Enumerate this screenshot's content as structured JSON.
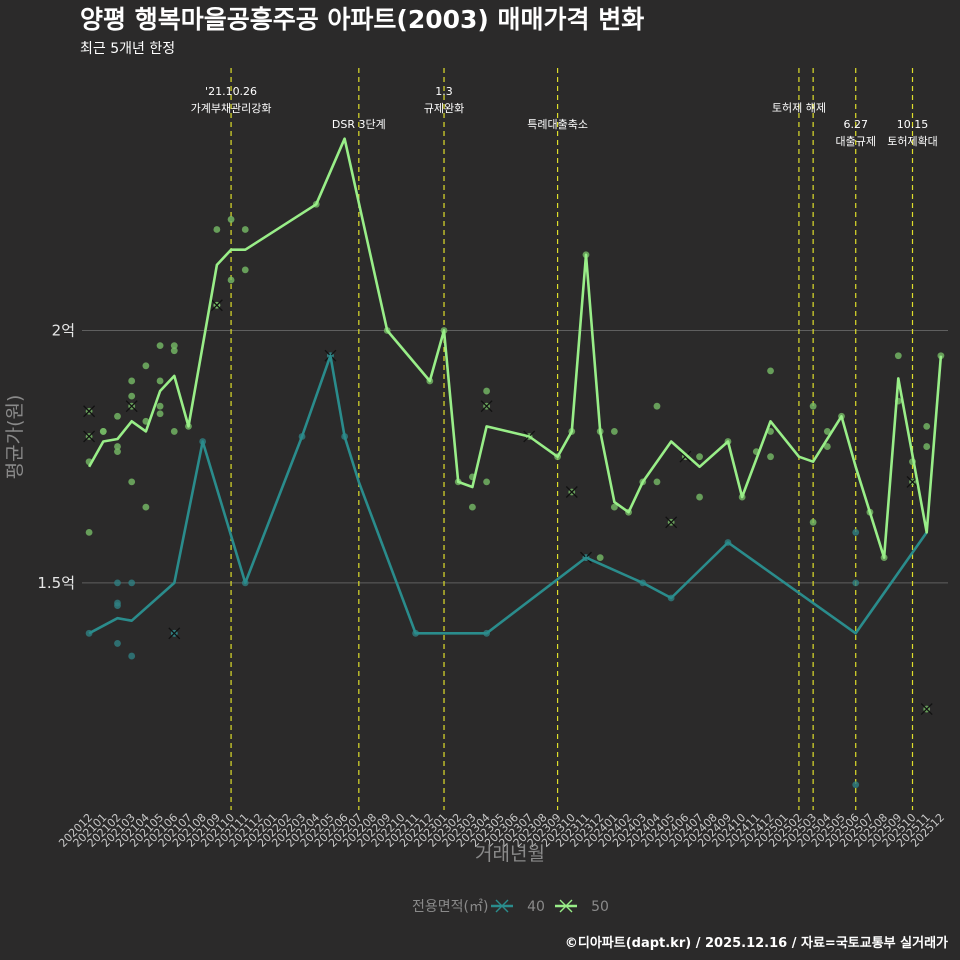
{
  "header": {
    "title": "양평 행복마을공흥주공 아파트(2003) 매매가격 변화",
    "subtitle": "최근 5개년 한정"
  },
  "caption": "©디아파트(dapt.kr) / 2025.12.16 / 자료=국토교통부 실거래가",
  "colors": {
    "background": "#2b2a2a",
    "series_40": "#2a8c8c",
    "series_50": "#99ee88",
    "point_40": "#2f7f82",
    "point_50": "#77bb66",
    "vline": "#dede2a",
    "grid": "#5f5f5f"
  },
  "chart_data": {
    "type": "line",
    "xlabel": "거래년월",
    "ylabel": "평균가(원)",
    "ylim": [
      1.05,
      2.52
    ],
    "yticks": [
      {
        "value": 1.5,
        "label": "1.5억"
      },
      {
        "value": 2.0,
        "label": "2억"
      }
    ],
    "categories": [
      "202012",
      "202101",
      "202102",
      "202103",
      "202104",
      "202105",
      "202106",
      "202107",
      "202108",
      "202109",
      "202110",
      "202111",
      "202112",
      "202201",
      "202202",
      "202203",
      "202204",
      "202205",
      "202206",
      "202207",
      "202208",
      "202209",
      "202210",
      "202211",
      "202212",
      "202301",
      "202302",
      "202303",
      "202304",
      "202305",
      "202306",
      "202307",
      "202308",
      "202309",
      "202310",
      "202311",
      "202312",
      "202401",
      "202402",
      "202403",
      "202404",
      "202405",
      "202406",
      "202407",
      "202408",
      "202409",
      "202410",
      "202411",
      "202412",
      "202501",
      "202502",
      "202503",
      "202504",
      "202505",
      "202506",
      "202507",
      "202508",
      "202509",
      "202510",
      "202511",
      "202512"
    ],
    "legend": {
      "title": "전용면적(㎡)",
      "items": [
        "40",
        "50"
      ]
    },
    "series": [
      {
        "name": "40",
        "line": [
          [
            "202012",
            1.4
          ],
          [
            "202102",
            1.43
          ],
          [
            "202103",
            1.425
          ],
          [
            "202106",
            1.5
          ],
          [
            "202108",
            1.78
          ],
          [
            "202111",
            1.5
          ],
          [
            "202203",
            1.79
          ],
          [
            "202205",
            1.95
          ],
          [
            "202206",
            1.79
          ],
          [
            "202207",
            1.7
          ],
          [
            "202211",
            1.4
          ],
          [
            "202304",
            1.4
          ],
          [
            "202311",
            1.55
          ],
          [
            "202403",
            1.5
          ],
          [
            "202405",
            1.47
          ],
          [
            "202409",
            1.58
          ],
          [
            "202506",
            1.4
          ],
          [
            "202511",
            1.6
          ]
        ],
        "points": [
          [
            "202012",
            1.4
          ],
          [
            "202102",
            1.5
          ],
          [
            "202102",
            1.46
          ],
          [
            "202102",
            1.455
          ],
          [
            "202102",
            1.38
          ],
          [
            "202103",
            1.5
          ],
          [
            "202103",
            1.355
          ],
          [
            "202106",
            1.4
          ],
          [
            "202108",
            1.78
          ],
          [
            "202111",
            1.5
          ],
          [
            "202203",
            1.79
          ],
          [
            "202205",
            1.95
          ],
          [
            "202206",
            1.79
          ],
          [
            "202211",
            1.4
          ],
          [
            "202304",
            1.4
          ],
          [
            "202311",
            1.55
          ],
          [
            "202403",
            1.5
          ],
          [
            "202405",
            1.47
          ],
          [
            "202409",
            1.58
          ],
          [
            "202506",
            1.6
          ],
          [
            "202506",
            1.5
          ],
          [
            "202506",
            1.1
          ]
        ],
        "crosses": [
          [
            "202106",
            1.4
          ],
          [
            "202205",
            1.95
          ],
          [
            "202311",
            1.55
          ]
        ]
      },
      {
        "name": "50",
        "line": [
          [
            "202012",
            1.73
          ],
          [
            "202101",
            1.78
          ],
          [
            "202102",
            1.785
          ],
          [
            "202103",
            1.82
          ],
          [
            "202104",
            1.8
          ],
          [
            "202105",
            1.88
          ],
          [
            "202106",
            1.91
          ],
          [
            "202107",
            1.81
          ],
          [
            "202109",
            2.13
          ],
          [
            "202110",
            2.16
          ],
          [
            "202111",
            2.16
          ],
          [
            "202204",
            2.25
          ],
          [
            "202206",
            2.38
          ],
          [
            "202209",
            2.0
          ],
          [
            "202212",
            1.9
          ],
          [
            "202301",
            2.0
          ],
          [
            "202302",
            1.7
          ],
          [
            "202303",
            1.69
          ],
          [
            "202304",
            1.81
          ],
          [
            "202307",
            1.79
          ],
          [
            "202309",
            1.75
          ],
          [
            "202310",
            1.8
          ],
          [
            "202311",
            2.15
          ],
          [
            "202312",
            1.8
          ],
          [
            "202401",
            1.66
          ],
          [
            "202402",
            1.64
          ],
          [
            "202403",
            1.7
          ],
          [
            "202405",
            1.78
          ],
          [
            "202407",
            1.73
          ],
          [
            "202409",
            1.78
          ],
          [
            "202410",
            1.67
          ],
          [
            "202412",
            1.82
          ],
          [
            "202502",
            1.75
          ],
          [
            "202503",
            1.74
          ],
          [
            "202505",
            1.83
          ],
          [
            "202506",
            1.73
          ],
          [
            "202507",
            1.64
          ],
          [
            "202508",
            1.55
          ],
          [
            "202509",
            1.905
          ],
          [
            "202511",
            1.6
          ],
          [
            "202512",
            1.95
          ]
        ],
        "points": [
          [
            "202012",
            1.74
          ],
          [
            "202012",
            1.6
          ],
          [
            "202101",
            1.8
          ],
          [
            "202101",
            1.8
          ],
          [
            "202102",
            1.77
          ],
          [
            "202102",
            1.76
          ],
          [
            "202102",
            1.83
          ],
          [
            "202103",
            1.9
          ],
          [
            "202103",
            1.87
          ],
          [
            "202103",
            1.7
          ],
          [
            "202104",
            1.93
          ],
          [
            "202104",
            1.82
          ],
          [
            "202104",
            1.65
          ],
          [
            "202105",
            1.97
          ],
          [
            "202105",
            1.9
          ],
          [
            "202105",
            1.85
          ],
          [
            "202105",
            1.835
          ],
          [
            "202106",
            1.97
          ],
          [
            "202106",
            1.96
          ],
          [
            "202106",
            1.8
          ],
          [
            "202107",
            1.81
          ],
          [
            "202109",
            2.2
          ],
          [
            "202109",
            2.05
          ],
          [
            "202110",
            2.22
          ],
          [
            "202110",
            2.1
          ],
          [
            "202111",
            2.2
          ],
          [
            "202111",
            2.12
          ],
          [
            "202204",
            2.25
          ],
          [
            "202209",
            2.0
          ],
          [
            "202212",
            1.9
          ],
          [
            "202301",
            2.0
          ],
          [
            "202302",
            1.7
          ],
          [
            "202303",
            1.71
          ],
          [
            "202303",
            1.65
          ],
          [
            "202304",
            1.88
          ],
          [
            "202304",
            1.7
          ],
          [
            "202309",
            1.75
          ],
          [
            "202310",
            1.8
          ],
          [
            "202311",
            2.15
          ],
          [
            "202312",
            1.8
          ],
          [
            "202312",
            1.55
          ],
          [
            "202401",
            1.8
          ],
          [
            "202401",
            1.65
          ],
          [
            "202402",
            1.64
          ],
          [
            "202403",
            1.7
          ],
          [
            "202404",
            1.85
          ],
          [
            "202404",
            1.7
          ],
          [
            "202407",
            1.75
          ],
          [
            "202407",
            1.67
          ],
          [
            "202409",
            1.78
          ],
          [
            "202410",
            1.67
          ],
          [
            "202411",
            1.76
          ],
          [
            "202412",
            1.92
          ],
          [
            "202412",
            1.8
          ],
          [
            "202412",
            1.75
          ],
          [
            "202503",
            1.85
          ],
          [
            "202503",
            1.62
          ],
          [
            "202504",
            1.8
          ],
          [
            "202504",
            1.77
          ],
          [
            "202505",
            1.83
          ],
          [
            "202507",
            1.64
          ],
          [
            "202508",
            1.55
          ],
          [
            "202509",
            1.95
          ],
          [
            "202509",
            1.86
          ],
          [
            "202510",
            1.74
          ],
          [
            "202511",
            1.81
          ],
          [
            "202511",
            1.77
          ],
          [
            "202512",
            1.95
          ]
        ],
        "crosses": [
          [
            "202012",
            1.84
          ],
          [
            "202012",
            1.79
          ],
          [
            "202103",
            1.85
          ],
          [
            "202109",
            2.05
          ],
          [
            "202304",
            1.85
          ],
          [
            "202307",
            1.79
          ],
          [
            "202310",
            1.68
          ],
          [
            "202405",
            1.62
          ],
          [
            "202406",
            1.75
          ],
          [
            "202510",
            1.7
          ],
          [
            "202511",
            1.25
          ]
        ]
      }
    ],
    "annotations": [
      {
        "x": "202110",
        "lines": [
          "'21.10.26",
          "가계부채관리강화"
        ],
        "level": 0
      },
      {
        "x": "202207",
        "lines": [
          "DSR 3단계"
        ],
        "level": 1
      },
      {
        "x": "202301",
        "lines": [
          "1.3",
          "규제완화"
        ],
        "level": 0
      },
      {
        "x": "202309",
        "lines": [
          "특례대출축소"
        ],
        "level": 1
      },
      {
        "x": "202502",
        "lines": [
          "토허제 해제"
        ],
        "level": 0.5
      },
      {
        "x": "202503",
        "lines": [],
        "level": 0
      },
      {
        "x": "202506",
        "lines": [
          "6.27",
          "대출규제"
        ],
        "level": 1
      },
      {
        "x": "202510",
        "lines": [
          "10.15",
          "토허제확대"
        ],
        "level": 1
      }
    ]
  }
}
